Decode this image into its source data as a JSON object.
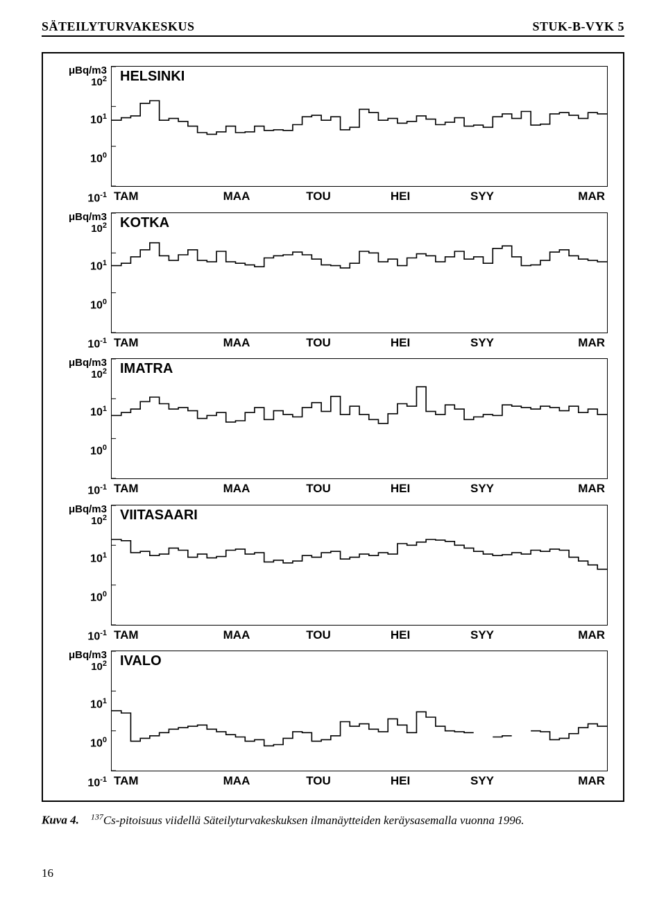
{
  "header": {
    "left": "SÄTEILYTURVAKESKUS",
    "right": "STUK-B-VYK 5"
  },
  "page_number": "16",
  "caption": {
    "label": "Kuva 4.",
    "iso_sup": "137",
    "text": "Cs-pitoisuus viidellä Säteilyturvakeskuksen ilmanäytteiden keräysasemalla vuonna 1996."
  },
  "yaxis": {
    "unit_html": "μBq/m3",
    "ticks": [
      "10²",
      "10¹",
      "10⁰",
      "10⁻¹"
    ]
  },
  "xaxis": {
    "labels": [
      "TAM",
      "MAA",
      "TOU",
      "HEI",
      "SYY",
      "MAR"
    ]
  },
  "panels": [
    {
      "title": "HELSINKI",
      "type": "step-log",
      "ylim_exp": [
        -1,
        2
      ],
      "values": [
        4.5,
        5.2,
        5.8,
        12,
        14,
        4.5,
        5,
        4.2,
        3.2,
        2.2,
        2.0,
        2.3,
        3.2,
        2.2,
        2.3,
        3.2,
        2.5,
        2.6,
        2.5,
        3.5,
        5.5,
        6.0,
        4.5,
        5.5,
        2.6,
        3.0,
        8.5,
        7.0,
        4.5,
        5.0,
        3.8,
        4.2,
        5.8,
        4.8,
        3.5,
        4.0,
        5.2,
        3.2,
        3.4,
        3.0,
        5.5,
        6.5,
        5.0,
        7.5,
        3.4,
        3.6,
        6.5,
        7.0,
        6.0,
        5.0,
        7.0,
        6.5
      ],
      "line_color": "#000000",
      "line_width": 1.6,
      "background_color": "#ffffff"
    },
    {
      "title": "KOTKA",
      "type": "step-log",
      "ylim_exp": [
        -1,
        2
      ],
      "values": [
        4.8,
        5.5,
        8.0,
        12,
        18,
        8.5,
        6.5,
        9.0,
        12,
        6.5,
        6.0,
        11,
        6.0,
        5.5,
        5.0,
        4.5,
        7.5,
        8.5,
        9.0,
        10.5,
        9.0,
        7.0,
        5.0,
        4.8,
        4.2,
        5.5,
        11,
        10,
        6.0,
        7.0,
        4.8,
        7.5,
        9.5,
        8.5,
        6.0,
        8.0,
        11,
        7.0,
        8.0,
        5.5,
        13,
        15,
        8.0,
        4.8,
        5.0,
        6.5,
        10.5,
        12,
        8.5,
        7.0,
        6.5,
        6.0
      ],
      "line_color": "#000000",
      "line_width": 1.6,
      "background_color": "#ffffff"
    },
    {
      "title": "IMATRA",
      "type": "step-log",
      "ylim_exp": [
        -1,
        2
      ],
      "values": [
        3.8,
        4.5,
        5.5,
        8.5,
        11,
        7.5,
        5.5,
        6.0,
        5.0,
        3.2,
        3.8,
        4.5,
        2.6,
        2.8,
        4.5,
        6.0,
        3.0,
        5.0,
        4.0,
        3.5,
        6.0,
        8.0,
        4.8,
        11.5,
        4.0,
        6.5,
        4.0,
        3.0,
        2.4,
        4.2,
        7.5,
        6.5,
        20,
        4.8,
        4.0,
        7.0,
        5.5,
        3.0,
        3.5,
        4.0,
        3.8,
        7.0,
        6.5,
        6.0,
        5.5,
        6.5,
        6.0,
        5.0,
        6.5,
        4.5,
        5.5,
        4.0
      ],
      "line_color": "#000000",
      "line_width": 1.6,
      "background_color": "#ffffff"
    },
    {
      "title": "VIITASAARI",
      "type": "step-log",
      "ylim_exp": [
        -1,
        2
      ],
      "values": [
        14,
        13,
        6.5,
        7.0,
        5.5,
        6.0,
        8.5,
        7.5,
        5.0,
        6.0,
        4.8,
        5.2,
        7.5,
        8.0,
        6.0,
        6.5,
        3.8,
        4.2,
        3.6,
        4.0,
        5.5,
        5.0,
        6.5,
        7.0,
        4.5,
        5.0,
        6.0,
        5.5,
        6.5,
        6.0,
        11,
        10,
        12,
        14,
        13.5,
        12.5,
        10,
        8.5,
        7.0,
        6.0,
        5.5,
        5.8,
        6.5,
        6.0,
        7.5,
        7.0,
        8.0,
        7.5,
        5.0,
        4.0,
        3.2,
        2.5
      ],
      "line_color": "#000000",
      "line_width": 1.6,
      "background_color": "#ffffff"
    },
    {
      "title": "IVALO",
      "type": "step-log",
      "ylim_exp": [
        -1,
        2
      ],
      "values": [
        3.2,
        2.8,
        0.55,
        0.65,
        0.75,
        0.9,
        1.1,
        1.2,
        1.3,
        1.4,
        1.1,
        0.95,
        0.8,
        0.7,
        0.55,
        0.6,
        0.42,
        0.45,
        0.65,
        0.95,
        0.9,
        0.55,
        0.6,
        0.75,
        1.7,
        1.3,
        1.5,
        1.1,
        0.95,
        2.0,
        1.4,
        0.9,
        3.0,
        2.2,
        1.3,
        1.0,
        0.95,
        0.9,
        null,
        null,
        0.7,
        0.75,
        null,
        null,
        1.0,
        0.95,
        0.6,
        0.65,
        0.85,
        1.2,
        1.5,
        1.3
      ],
      "line_color": "#000000",
      "line_width": 1.6,
      "background_color": "#ffffff"
    }
  ],
  "chart_style": {
    "border_color": "#000000",
    "border_width": 1.5,
    "title_fontsize": 20,
    "axis_fontsize": 17,
    "font_family_sans": "Arial, Helvetica, sans-serif"
  }
}
